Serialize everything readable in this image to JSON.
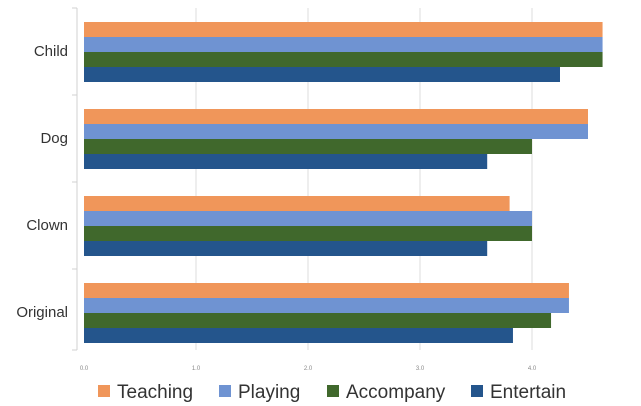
{
  "chart_data": {
    "type": "bar",
    "orientation": "horizontal",
    "categories": [
      "Child",
      "Dog",
      "Clown",
      "Original"
    ],
    "series": [
      {
        "name": "Teaching",
        "color": "#F0965A",
        "values": [
          4.63,
          4.5,
          3.8,
          4.33
        ]
      },
      {
        "name": "Playing",
        "color": "#6F93D2",
        "values": [
          4.63,
          4.5,
          4.0,
          4.33
        ]
      },
      {
        "name": "Accompany",
        "color": "#40682C",
        "values": [
          4.63,
          4.0,
          4.0,
          4.17
        ]
      },
      {
        "name": "Entertain",
        "color": "#24558C",
        "values": [
          4.25,
          3.6,
          3.6,
          3.83
        ]
      }
    ],
    "xlim": [
      0,
      5
    ],
    "xticks": [
      "0.0",
      "1.0",
      "2.0",
      "3.0",
      "4.0",
      "5"
    ],
    "grid": true,
    "legend_position": "bottom",
    "title": "",
    "xlabel": "",
    "ylabel": ""
  }
}
